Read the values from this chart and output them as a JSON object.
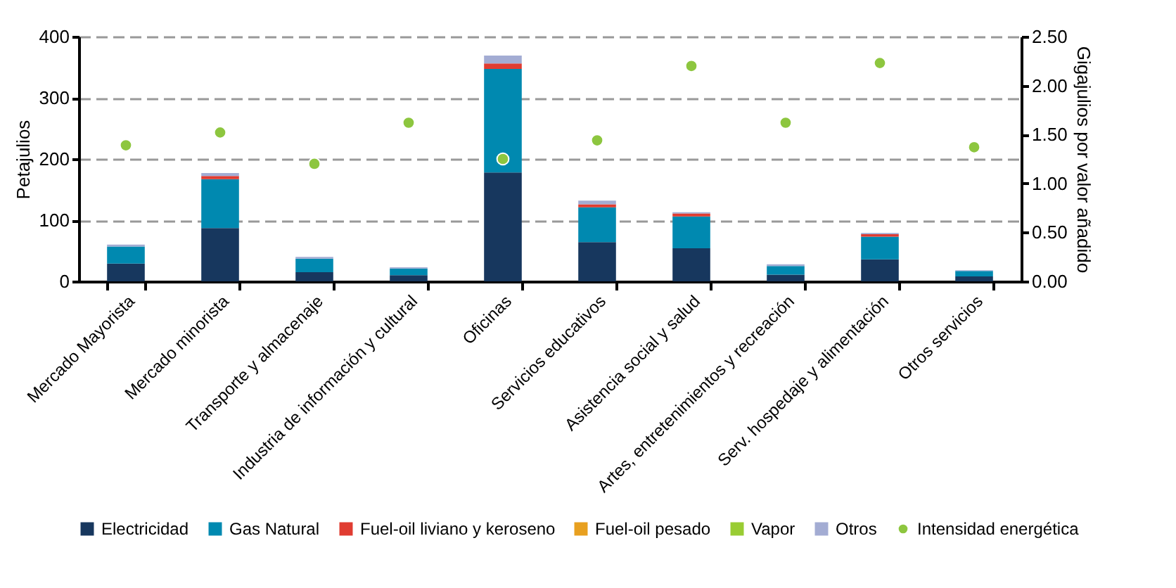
{
  "chart_data": {
    "type": "bar",
    "stacked": true,
    "ylabel": "Petajulios",
    "y2label": "Gigajulios por valor añadido",
    "categories": [
      "Mercado Mayorista",
      "Mercado minorista",
      "Transporte y almacenaje",
      "Industria de información y cultural",
      "Oficinas",
      "Servicios educativos",
      "Asistencia social y salud",
      "Artes, entretenimientos y recreación",
      "Serv. hospedaje y alimentación",
      "Otros servicios"
    ],
    "series": [
      {
        "name": "Electricidad",
        "color": "#17375e",
        "values": [
          29,
          87,
          15,
          10,
          178,
          64,
          54,
          11,
          36,
          8
        ]
      },
      {
        "name": "Gas Natural",
        "color": "#0089b0",
        "values": [
          28,
          80,
          22,
          11,
          169,
          57,
          52,
          14,
          37,
          9
        ]
      },
      {
        "name": "Fuel-oil liviano y keroseno",
        "color": "#e03c31",
        "values": [
          null,
          5,
          0,
          0,
          9,
          5,
          5,
          0,
          4,
          0
        ]
      },
      {
        "name": "Fuel-oil pesado",
        "color": "#e8a020",
        "values": [
          0,
          0,
          0,
          0,
          0,
          0,
          0,
          0,
          0,
          0
        ]
      },
      {
        "name": "Vapor",
        "color": "#99cc33",
        "values": [
          0,
          0,
          0,
          0,
          0,
          0,
          0,
          0,
          0,
          0
        ]
      },
      {
        "name": "Otros",
        "color": "#a3acd3",
        "values": [
          3,
          5,
          3,
          2,
          13,
          6,
          2,
          3,
          2,
          1
        ]
      },
      {
        "name": "Intensidad energética",
        "color": "#8dc63f",
        "type": "scatter",
        "axis": "y2",
        "values": [
          1.39,
          1.52,
          1.2,
          1.62,
          1.25,
          1.44,
          2.2,
          1.62,
          2.23,
          1.37
        ]
      }
    ],
    "ylim": [
      0,
      400
    ],
    "yticks": [
      0,
      100,
      200,
      300,
      400
    ],
    "y2lim": [
      0,
      2.5
    ],
    "y2ticks": [
      {
        "value": 0,
        "label": "0.00"
      },
      {
        "value": 0.5,
        "label": "0.50"
      },
      {
        "value": 1,
        "label": "1.00"
      },
      {
        "value": 1.5,
        "label": "1.50"
      },
      {
        "value": 2,
        "label": "2.00"
      },
      {
        "value": 2.5,
        "label": "2.50"
      }
    ],
    "grid": "y",
    "legend": "bottom",
    "marker": "circle"
  }
}
